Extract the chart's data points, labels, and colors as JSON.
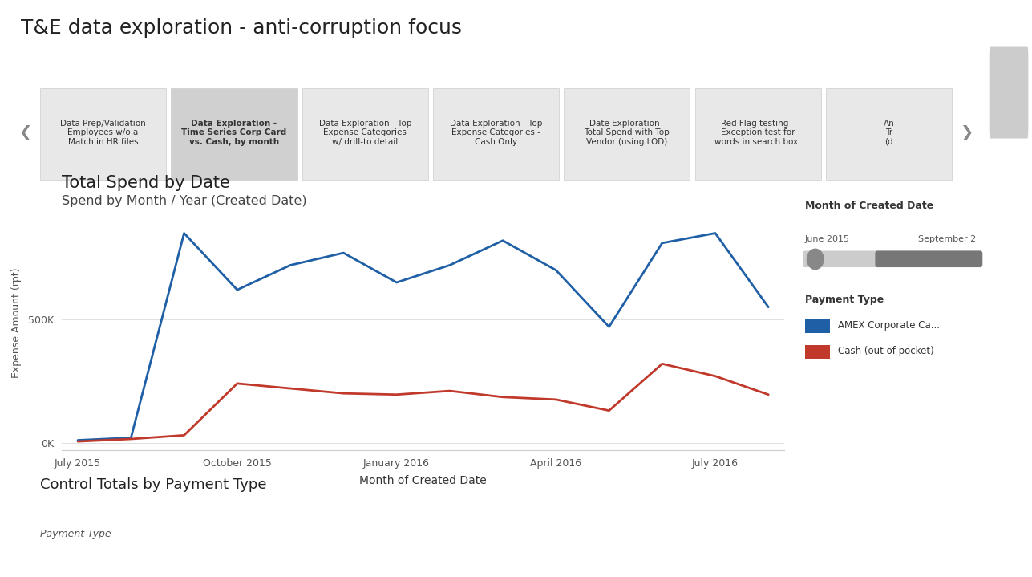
{
  "title": "T&E data exploration - anti-corruption focus",
  "chart_title": "Total Spend by Date",
  "chart_subtitle": "Spend by Month / Year (Created Date)",
  "xlabel": "Month of Created Date",
  "ylabel": "Expense Amount (rpt)",
  "background_color": "#ffffff",
  "nav_items": [
    "Data Prep/Validation\nEmployees w/o a\nMatch in HR files",
    "Data Exploration -\nTime Series Corp Card\nvs. Cash, by month",
    "Data Exploration - Top\nExpense Categories\nw/ drill-to detail",
    "Data Exploration - Top\nExpense Categories -\nCash Only",
    "Date Exploration -\nTotal Spend with Top\nVendor (using LOD)",
    "Red Flag testing -\nException test for\nwords in search box.",
    "An\nTr\n(d"
  ],
  "nav_selected": 1,
  "x_labels": [
    "July 2015",
    "October 2015",
    "January 2016",
    "April 2016",
    "July 2016",
    ""
  ],
  "x_ticks": [
    0,
    3,
    6,
    9,
    12,
    15
  ],
  "blue_values": [
    10,
    20,
    850,
    620,
    720,
    770,
    650,
    720,
    820,
    700,
    470,
    810,
    850,
    550
  ],
  "red_values": [
    5,
    15,
    30,
    240,
    220,
    200,
    195,
    210,
    185,
    175,
    130,
    320,
    270,
    195
  ],
  "blue_color": "#1f5fa6",
  "red_color": "#c0392b",
  "legend_title_paytype": "Payment Type",
  "legend_blue_label": "AMEX Corporate Ca...",
  "legend_red_label": "Cash (out of pocket)",
  "slider_label_left": "June 2015",
  "slider_label_right": "September 2",
  "slider_title": "Month of Created Date",
  "footer_title": "Control Totals by Payment Type",
  "footer_subtitle": "Payment Type",
  "yticks": [
    0,
    500
  ],
  "ytick_labels": [
    "0K",
    "500K"
  ]
}
